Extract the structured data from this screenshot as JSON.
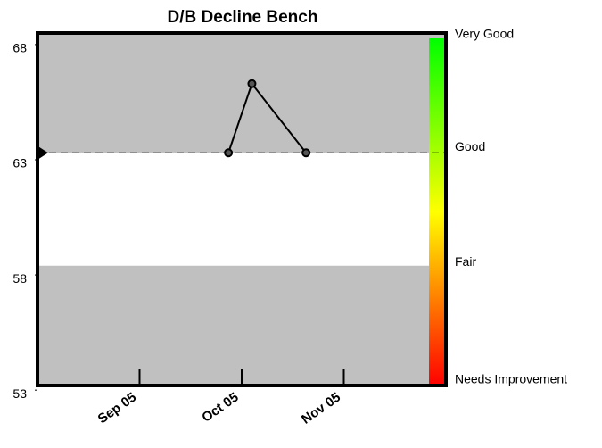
{
  "chart_data": {
    "type": "line",
    "title": "D/B Decline Bench",
    "x": [
      1.87,
      2.1,
      2.63
    ],
    "series": [
      {
        "values": [
          63.3,
          66.3,
          63.3
        ],
        "color": "#000000"
      }
    ],
    "xlim": [
      0,
      4
    ],
    "xticks": [
      {
        "value": 1,
        "label": "Sep 05"
      },
      {
        "value": 2,
        "label": "Oct 05"
      },
      {
        "value": 3,
        "label": "Nov 05"
      }
    ],
    "ylim": [
      53.2,
      68.5
    ],
    "yticks": [
      53,
      58,
      63,
      68
    ],
    "target": 63.3,
    "bands": [
      {
        "from": 63.3,
        "to": 68.5,
        "color": "#c0c0c0"
      },
      {
        "from": 58.4,
        "to": 63.3,
        "color": "#ffffff"
      },
      {
        "from": 53.2,
        "to": 58.4,
        "color": "#c0c0c0"
      }
    ],
    "rating_scale": {
      "colors": [
        "#ff0000",
        "#ffff00",
        "#00ff00"
      ],
      "labels": [
        {
          "value": 68.2,
          "label": "Very Good"
        },
        {
          "value": 63.3,
          "label": "Good"
        },
        {
          "value": 58.3,
          "label": "Fair"
        },
        {
          "value": 53.2,
          "label": "Needs Improvement"
        }
      ]
    }
  }
}
